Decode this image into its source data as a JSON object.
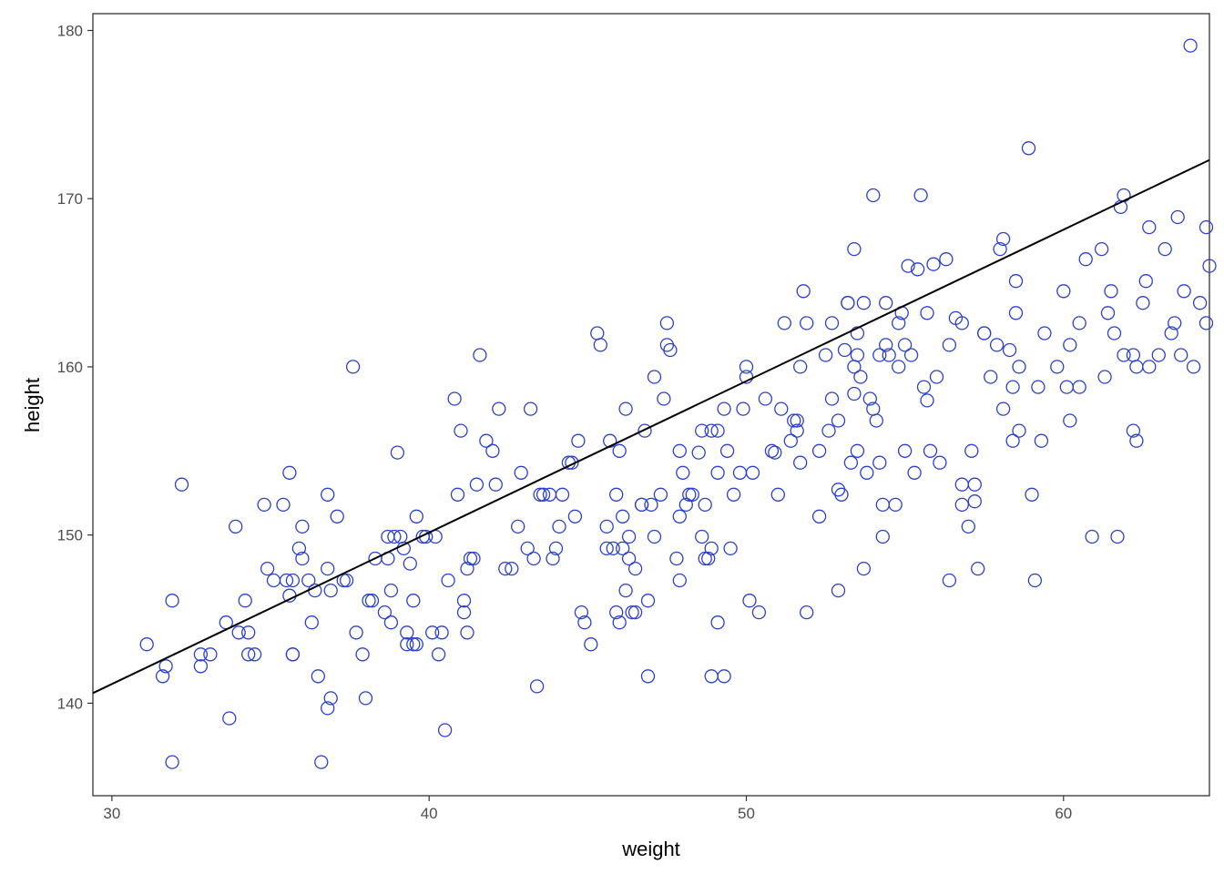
{
  "colors": {
    "points": "#2a3fd4",
    "fit_line": "#000000",
    "panel_border": "#333333",
    "tick": "#333333",
    "background": "#ffffff"
  },
  "chart_data": {
    "type": "scatter",
    "xlabel": "weight",
    "ylabel": "height",
    "xlim": [
      29.4,
      64.6
    ],
    "ylim": [
      134.5,
      181.0
    ],
    "xticks": [
      30,
      40,
      50,
      60
    ],
    "yticks": [
      140,
      150,
      160,
      170,
      180
    ],
    "grid": false,
    "marker": "open-circle",
    "fit_line": {
      "type": "linear",
      "x": [
        29.4,
        64.6
      ],
      "y": [
        140.6,
        172.3
      ]
    },
    "points": [
      [
        31.1,
        143.5
      ],
      [
        31.6,
        141.6
      ],
      [
        31.7,
        142.2
      ],
      [
        31.9,
        136.5
      ],
      [
        31.9,
        146.1
      ],
      [
        32.2,
        153.0
      ],
      [
        32.8,
        142.9
      ],
      [
        32.8,
        142.2
      ],
      [
        33.1,
        142.9
      ],
      [
        33.6,
        144.8
      ],
      [
        33.7,
        139.1
      ],
      [
        33.9,
        150.5
      ],
      [
        34.0,
        144.2
      ],
      [
        34.2,
        146.1
      ],
      [
        34.3,
        144.2
      ],
      [
        34.3,
        142.9
      ],
      [
        34.5,
        142.9
      ],
      [
        34.8,
        151.8
      ],
      [
        34.9,
        148.0
      ],
      [
        35.1,
        147.3
      ],
      [
        35.4,
        151.8
      ],
      [
        35.5,
        147.3
      ],
      [
        35.6,
        146.4
      ],
      [
        35.6,
        153.7
      ],
      [
        35.7,
        142.9
      ],
      [
        35.7,
        147.3
      ],
      [
        35.7,
        142.9
      ],
      [
        35.9,
        149.2
      ],
      [
        36.0,
        148.6
      ],
      [
        36.0,
        150.5
      ],
      [
        36.2,
        147.3
      ],
      [
        36.3,
        144.8
      ],
      [
        36.4,
        146.7
      ],
      [
        36.5,
        141.6
      ],
      [
        36.6,
        136.5
      ],
      [
        36.8,
        152.4
      ],
      [
        36.8,
        148.0
      ],
      [
        36.8,
        139.7
      ],
      [
        36.9,
        140.3
      ],
      [
        36.9,
        146.7
      ],
      [
        37.1,
        151.1
      ],
      [
        37.3,
        147.3
      ],
      [
        37.4,
        147.3
      ],
      [
        37.6,
        160.0
      ],
      [
        37.7,
        144.2
      ],
      [
        37.9,
        142.9
      ],
      [
        38.0,
        140.3
      ],
      [
        38.1,
        146.1
      ],
      [
        38.2,
        146.1
      ],
      [
        38.3,
        148.6
      ],
      [
        38.6,
        145.4
      ],
      [
        38.7,
        148.6
      ],
      [
        38.7,
        149.9
      ],
      [
        38.8,
        144.8
      ],
      [
        38.8,
        146.7
      ],
      [
        38.9,
        149.9
      ],
      [
        39.0,
        154.9
      ],
      [
        39.1,
        149.9
      ],
      [
        39.2,
        149.2
      ],
      [
        39.3,
        143.5
      ],
      [
        39.3,
        144.2
      ],
      [
        39.4,
        148.3
      ],
      [
        39.5,
        143.5
      ],
      [
        39.5,
        146.1
      ],
      [
        39.6,
        143.5
      ],
      [
        39.6,
        151.1
      ],
      [
        39.8,
        149.9
      ],
      [
        39.9,
        149.9
      ],
      [
        40.1,
        144.2
      ],
      [
        40.2,
        149.9
      ],
      [
        40.3,
        142.9
      ],
      [
        40.4,
        144.2
      ],
      [
        40.5,
        138.4
      ],
      [
        40.6,
        147.3
      ],
      [
        40.8,
        158.1
      ],
      [
        40.9,
        152.4
      ],
      [
        41.0,
        156.2
      ],
      [
        41.1,
        146.1
      ],
      [
        41.1,
        145.4
      ],
      [
        41.2,
        144.2
      ],
      [
        41.2,
        148.0
      ],
      [
        41.3,
        148.6
      ],
      [
        41.4,
        148.6
      ],
      [
        41.5,
        153.0
      ],
      [
        41.6,
        160.7
      ],
      [
        41.8,
        155.6
      ],
      [
        42.0,
        155.0
      ],
      [
        42.1,
        153.0
      ],
      [
        42.2,
        157.5
      ],
      [
        42.4,
        148.0
      ],
      [
        42.6,
        148.0
      ],
      [
        42.8,
        150.5
      ],
      [
        42.9,
        153.7
      ],
      [
        43.1,
        149.2
      ],
      [
        43.2,
        157.5
      ],
      [
        43.3,
        148.6
      ],
      [
        43.4,
        141.0
      ],
      [
        43.5,
        152.4
      ],
      [
        43.6,
        152.4
      ],
      [
        43.8,
        152.4
      ],
      [
        43.9,
        148.6
      ],
      [
        44.0,
        149.2
      ],
      [
        44.1,
        150.5
      ],
      [
        44.2,
        152.4
      ],
      [
        44.4,
        154.3
      ],
      [
        44.5,
        154.3
      ],
      [
        44.6,
        151.1
      ],
      [
        44.7,
        155.6
      ],
      [
        44.8,
        145.4
      ],
      [
        44.9,
        144.8
      ],
      [
        45.1,
        143.5
      ],
      [
        45.3,
        162.0
      ],
      [
        45.4,
        161.3
      ],
      [
        45.6,
        150.5
      ],
      [
        45.6,
        149.2
      ],
      [
        45.7,
        155.6
      ],
      [
        45.8,
        149.2
      ],
      [
        45.9,
        152.4
      ],
      [
        45.9,
        145.4
      ],
      [
        46.0,
        144.8
      ],
      [
        46.0,
        155.0
      ],
      [
        46.1,
        149.2
      ],
      [
        46.1,
        151.1
      ],
      [
        46.2,
        157.5
      ],
      [
        46.2,
        146.7
      ],
      [
        46.3,
        148.6
      ],
      [
        46.3,
        149.9
      ],
      [
        46.4,
        145.4
      ],
      [
        46.5,
        148.0
      ],
      [
        46.5,
        145.4
      ],
      [
        46.7,
        151.8
      ],
      [
        46.7,
        151.8
      ],
      [
        46.8,
        156.2
      ],
      [
        46.9,
        146.1
      ],
      [
        46.9,
        141.6
      ],
      [
        47.0,
        151.8
      ],
      [
        47.1,
        149.9
      ],
      [
        47.1,
        159.4
      ],
      [
        47.3,
        152.4
      ],
      [
        47.4,
        158.1
      ],
      [
        47.5,
        161.3
      ],
      [
        47.5,
        162.6
      ],
      [
        47.6,
        161.0
      ],
      [
        47.8,
        148.6
      ],
      [
        47.9,
        147.3
      ],
      [
        47.9,
        151.1
      ],
      [
        47.9,
        155.0
      ],
      [
        48.0,
        153.7
      ],
      [
        48.1,
        151.8
      ],
      [
        48.2,
        152.4
      ],
      [
        48.3,
        152.4
      ],
      [
        48.5,
        154.9
      ],
      [
        48.6,
        156.2
      ],
      [
        48.6,
        149.9
      ],
      [
        48.7,
        151.8
      ],
      [
        48.7,
        148.6
      ],
      [
        48.8,
        148.6
      ],
      [
        48.9,
        149.2
      ],
      [
        48.9,
        141.6
      ],
      [
        48.9,
        156.2
      ],
      [
        49.1,
        156.2
      ],
      [
        49.1,
        153.7
      ],
      [
        49.1,
        144.8
      ],
      [
        49.3,
        141.6
      ],
      [
        49.3,
        157.5
      ],
      [
        49.4,
        155.0
      ],
      [
        49.5,
        149.2
      ],
      [
        49.6,
        152.4
      ],
      [
        49.8,
        153.7
      ],
      [
        49.9,
        157.5
      ],
      [
        50.0,
        159.4
      ],
      [
        50.0,
        160.0
      ],
      [
        50.1,
        146.1
      ],
      [
        50.2,
        153.7
      ],
      [
        50.4,
        145.4
      ],
      [
        50.6,
        158.1
      ],
      [
        50.8,
        155.0
      ],
      [
        50.9,
        154.9
      ],
      [
        51.0,
        152.4
      ],
      [
        51.1,
        157.5
      ],
      [
        51.2,
        162.6
      ],
      [
        51.4,
        155.6
      ],
      [
        51.5,
        156.8
      ],
      [
        51.6,
        156.8
      ],
      [
        51.6,
        156.2
      ],
      [
        51.7,
        154.3
      ],
      [
        51.7,
        160.0
      ],
      [
        51.8,
        164.5
      ],
      [
        51.9,
        162.6
      ],
      [
        51.9,
        145.4
      ],
      [
        52.3,
        151.1
      ],
      [
        52.3,
        155.0
      ],
      [
        52.5,
        160.7
      ],
      [
        52.6,
        156.2
      ],
      [
        52.7,
        162.6
      ],
      [
        52.7,
        158.1
      ],
      [
        52.9,
        152.7
      ],
      [
        52.9,
        146.7
      ],
      [
        52.9,
        156.8
      ],
      [
        53.0,
        152.4
      ],
      [
        53.1,
        161.0
      ],
      [
        53.2,
        163.8
      ],
      [
        53.2,
        163.8
      ],
      [
        53.3,
        154.3
      ],
      [
        53.4,
        167.0
      ],
      [
        53.4,
        158.4
      ],
      [
        53.4,
        160.0
      ],
      [
        53.5,
        155.0
      ],
      [
        53.5,
        160.7
      ],
      [
        53.5,
        162.0
      ],
      [
        53.6,
        159.4
      ],
      [
        53.7,
        148.0
      ],
      [
        53.7,
        163.8
      ],
      [
        53.8,
        153.7
      ],
      [
        53.9,
        158.1
      ],
      [
        54.0,
        170.2
      ],
      [
        54.0,
        157.5
      ],
      [
        54.1,
        156.8
      ],
      [
        54.2,
        154.3
      ],
      [
        54.2,
        160.7
      ],
      [
        54.3,
        149.9
      ],
      [
        54.3,
        151.8
      ],
      [
        54.4,
        163.8
      ],
      [
        54.4,
        161.3
      ],
      [
        54.5,
        160.7
      ],
      [
        54.7,
        151.8
      ],
      [
        54.8,
        160.0
      ],
      [
        54.8,
        162.6
      ],
      [
        54.9,
        163.2
      ],
      [
        55.0,
        155.0
      ],
      [
        55.0,
        161.3
      ],
      [
        55.1,
        166.0
      ],
      [
        55.2,
        160.7
      ],
      [
        55.3,
        153.7
      ],
      [
        55.4,
        165.8
      ],
      [
        55.5,
        170.2
      ],
      [
        55.6,
        158.8
      ],
      [
        55.7,
        158.0
      ],
      [
        55.7,
        163.2
      ],
      [
        55.8,
        155.0
      ],
      [
        55.9,
        166.1
      ],
      [
        56.0,
        159.4
      ],
      [
        56.1,
        154.3
      ],
      [
        56.3,
        166.4
      ],
      [
        56.4,
        161.3
      ],
      [
        56.4,
        147.3
      ],
      [
        56.6,
        162.9
      ],
      [
        56.8,
        153.0
      ],
      [
        56.8,
        162.6
      ],
      [
        56.8,
        151.8
      ],
      [
        57.0,
        150.5
      ],
      [
        57.1,
        155.0
      ],
      [
        57.2,
        153.0
      ],
      [
        57.2,
        152.0
      ],
      [
        57.3,
        148.0
      ],
      [
        57.5,
        162.0
      ],
      [
        57.5,
        162.0
      ],
      [
        57.7,
        159.4
      ],
      [
        57.9,
        161.3
      ],
      [
        58.0,
        167.0
      ],
      [
        58.1,
        167.6
      ],
      [
        58.1,
        157.5
      ],
      [
        58.3,
        161.0
      ],
      [
        58.4,
        158.8
      ],
      [
        58.4,
        155.6
      ],
      [
        58.5,
        163.2
      ],
      [
        58.5,
        165.1
      ],
      [
        58.6,
        160.0
      ],
      [
        58.6,
        156.2
      ],
      [
        58.9,
        173.0
      ],
      [
        59.0,
        152.4
      ],
      [
        59.1,
        147.3
      ],
      [
        59.2,
        158.8
      ],
      [
        59.3,
        155.6
      ],
      [
        59.4,
        162.0
      ],
      [
        59.8,
        160.0
      ],
      [
        60.0,
        164.5
      ],
      [
        60.1,
        158.8
      ],
      [
        60.2,
        156.8
      ],
      [
        60.2,
        161.3
      ],
      [
        60.5,
        162.6
      ],
      [
        60.5,
        158.8
      ],
      [
        60.7,
        166.4
      ],
      [
        60.9,
        149.9
      ],
      [
        61.2,
        167.0
      ],
      [
        61.3,
        159.4
      ],
      [
        61.4,
        163.2
      ],
      [
        61.5,
        164.5
      ],
      [
        61.6,
        162.0
      ],
      [
        61.7,
        149.9
      ],
      [
        61.8,
        169.5
      ],
      [
        61.9,
        170.2
      ],
      [
        61.9,
        160.7
      ],
      [
        62.2,
        156.2
      ],
      [
        62.2,
        160.7
      ],
      [
        62.3,
        155.6
      ],
      [
        62.3,
        160.0
      ],
      [
        62.5,
        163.8
      ],
      [
        62.6,
        165.1
      ],
      [
        62.7,
        168.3
      ],
      [
        62.7,
        160.0
      ],
      [
        63.0,
        160.7
      ],
      [
        63.2,
        167.0
      ],
      [
        63.4,
        162.0
      ],
      [
        63.5,
        162.6
      ],
      [
        63.6,
        168.9
      ],
      [
        63.7,
        160.7
      ],
      [
        63.8,
        164.5
      ],
      [
        64.0,
        179.1
      ],
      [
        64.1,
        160.0
      ],
      [
        64.3,
        163.8
      ],
      [
        64.5,
        168.3
      ],
      [
        64.5,
        162.6
      ],
      [
        64.6,
        166.0
      ]
    ]
  }
}
